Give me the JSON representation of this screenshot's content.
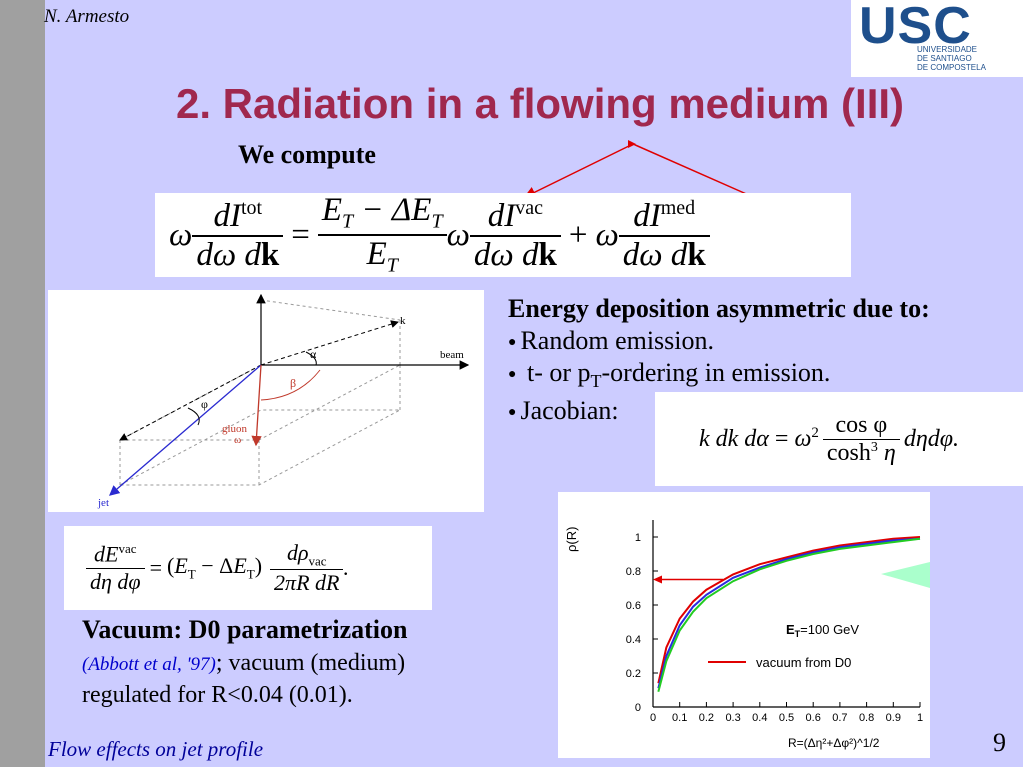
{
  "header": {
    "author": "N. Armesto",
    "logo_text": "USC",
    "logo_subtext": [
      "UNIVERSIDADE",
      "DE SANTIAGO",
      "DE COMPOSTELA"
    ]
  },
  "title": "2. Radiation in a flowing medium (III)",
  "we_compute": "We compute",
  "equation_main": {
    "lhs_prefix": "ω",
    "lhs_num": "dI",
    "lhs_sup": "tot",
    "lhs_den": "dω dk",
    "ratio_num": "E_T − ΔE_T",
    "ratio_den": "E_T",
    "vac_sup": "vac",
    "med_sup": "med"
  },
  "energy_heading": "Energy deposition asymmetric due to:",
  "bullets": [
    "Random emission.",
    "t- or p",
    "-ordering in emission.",
    "Jacobian:"
  ],
  "bullet_sub": "T",
  "jacobian_eq": "k dk dα = ω² cos φ / cosh³ η dη dφ.",
  "vacuum_eq": "dE^vac / dη dφ = (E_T − ΔE_T) dρ_vac / 2πR dR.",
  "diagram_labels": {
    "k": "k",
    "beam": "beam",
    "alpha": "α",
    "beta": "β",
    "phi": "φ",
    "gluon": "gluon",
    "omega": "ω",
    "jet": "jet"
  },
  "vacuum_heading": "Vacuum: D0 parametrization",
  "vacuum_cite": "(Abbott et al, '97)",
  "vacuum_text1": "; vacuum (medium)",
  "vacuum_text2": "regulated for R<0.04 (0.01).",
  "footer": "Flow effects on jet profile",
  "page_number": "9",
  "colors": {
    "title": "#a0284e",
    "background": "#ccccff",
    "footer": "#000099",
    "red_arrow": "#e00000"
  },
  "chart_data": {
    "type": "line",
    "ylabel": "ρ(R)",
    "xlabel": "R=(Δη²+Δφ²)^1/2",
    "xlim": [
      0,
      1
    ],
    "ylim": [
      0,
      1.1
    ],
    "xticks": [
      "0",
      "0.1",
      "0.2",
      "0.3",
      "0.4",
      "0.5",
      "0.6",
      "0.7",
      "0.8",
      "0.9",
      "1"
    ],
    "yticks": [
      "0",
      "0.2",
      "0.4",
      "0.6",
      "0.8",
      "1"
    ],
    "annotation_et_prefix": "E",
    "annotation_et_sub": "T",
    "annotation_et_value": "=100 GeV",
    "legend": [
      "vacuum from D0"
    ],
    "series": [
      {
        "name": "vacuum from D0",
        "color": "#e00000",
        "x": [
          0.02,
          0.05,
          0.1,
          0.15,
          0.2,
          0.3,
          0.4,
          0.5,
          0.6,
          0.7,
          0.8,
          0.9,
          1.0
        ],
        "y": [
          0.14,
          0.35,
          0.52,
          0.62,
          0.69,
          0.78,
          0.84,
          0.88,
          0.92,
          0.95,
          0.97,
          0.99,
          1.0
        ]
      },
      {
        "name": "",
        "color": "#2a2ae0",
        "x": [
          0.02,
          0.05,
          0.1,
          0.15,
          0.2,
          0.3,
          0.4,
          0.5,
          0.6,
          0.7,
          0.8,
          0.9,
          1.0
        ],
        "y": [
          0.11,
          0.3,
          0.48,
          0.59,
          0.66,
          0.76,
          0.82,
          0.87,
          0.91,
          0.94,
          0.96,
          0.98,
          0.99
        ]
      },
      {
        "name": "",
        "color": "#22cc22",
        "x": [
          0.02,
          0.05,
          0.1,
          0.15,
          0.2,
          0.3,
          0.4,
          0.5,
          0.6,
          0.7,
          0.8,
          0.9,
          1.0
        ],
        "y": [
          0.09,
          0.27,
          0.45,
          0.56,
          0.64,
          0.74,
          0.81,
          0.86,
          0.9,
          0.93,
          0.95,
          0.97,
          0.99
        ]
      }
    ],
    "arrow_at_y": 0.75
  }
}
